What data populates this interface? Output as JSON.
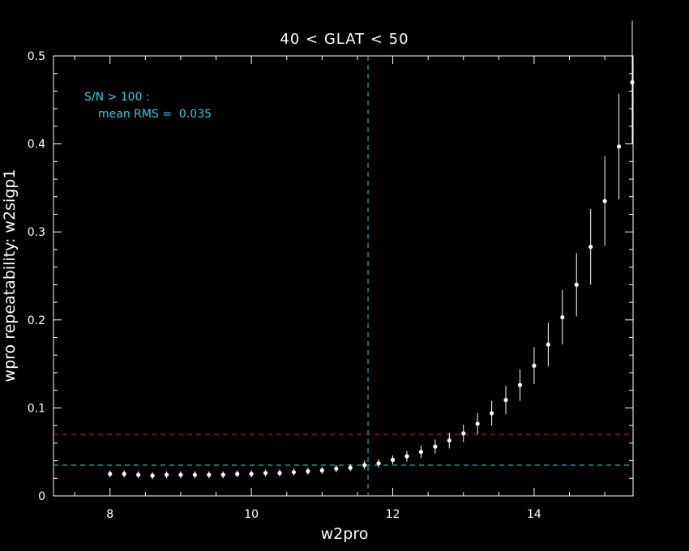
{
  "chart_data": {
    "type": "scatter",
    "title": "40 < GLAT < 50",
    "xlabel": "w2pro",
    "ylabel": "wpro repeatability: w2sigp1",
    "xlim": [
      7.2,
      15.4
    ],
    "ylim": [
      0,
      0.5
    ],
    "xticks": [
      8,
      10,
      12,
      14
    ],
    "xtick_labels": [
      "8",
      "10",
      "12",
      "14"
    ],
    "yticks": [
      0,
      0.1,
      0.2,
      0.3,
      0.4,
      0.5
    ],
    "ytick_labels": [
      "0",
      "0.1",
      "0.2",
      "0.3",
      "0.4",
      "0.5"
    ],
    "annotation": [
      "S/N > 100 :",
      "mean RMS =  0.035"
    ],
    "reference_lines": {
      "vertical_x": 11.65,
      "horizontal_cyan_y": 0.035,
      "horizontal_red_y": 0.07
    },
    "series": [
      {
        "x": [
          8.0,
          8.2,
          8.4,
          8.6,
          8.8,
          9.0,
          9.2,
          9.4,
          9.6,
          9.8,
          10.0,
          10.2,
          10.4,
          10.6,
          10.8,
          11.0,
          11.2,
          11.4,
          11.6,
          11.8,
          12.0,
          12.2,
          12.4,
          12.6,
          12.8,
          13.0,
          13.2,
          13.4,
          13.6,
          13.8,
          14.0,
          14.2,
          14.4,
          14.6,
          14.8,
          15.0,
          15.2,
          15.4
        ],
        "y": [
          0.025,
          0.025,
          0.024,
          0.023,
          0.024,
          0.024,
          0.024,
          0.024,
          0.024,
          0.025,
          0.025,
          0.026,
          0.026,
          0.027,
          0.028,
          0.029,
          0.031,
          0.032,
          0.035,
          0.037,
          0.041,
          0.045,
          0.05,
          0.056,
          0.063,
          0.071,
          0.082,
          0.094,
          0.109,
          0.126,
          0.148,
          0.172,
          0.203,
          0.24,
          0.283,
          0.335,
          0.397,
          0.47
        ],
        "err": [
          0.004,
          0.004,
          0.004,
          0.004,
          0.004,
          0.004,
          0.004,
          0.004,
          0.004,
          0.004,
          0.004,
          0.004,
          0.004,
          0.004,
          0.004,
          0.004,
          0.004,
          0.004,
          0.005,
          0.005,
          0.005,
          0.006,
          0.007,
          0.008,
          0.009,
          0.01,
          0.012,
          0.014,
          0.016,
          0.018,
          0.021,
          0.025,
          0.031,
          0.036,
          0.043,
          0.051,
          0.06,
          0.07
        ]
      }
    ],
    "colors": {
      "background": "#000000",
      "axes": "#ffffff",
      "points": "#ffffff",
      "cyan": "#33ccdd",
      "red": "#cc2222"
    }
  }
}
